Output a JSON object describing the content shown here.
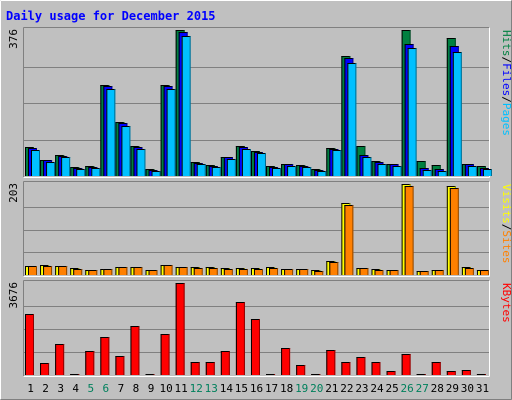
{
  "chart_data": {
    "type": "bar",
    "title": "Daily usage for December 2015",
    "days": [
      "1",
      "2",
      "3",
      "4",
      "5",
      "6",
      "7",
      "8",
      "9",
      "10",
      "11",
      "12",
      "13",
      "14",
      "15",
      "16",
      "17",
      "18",
      "19",
      "20",
      "21",
      "22",
      "23",
      "24",
      "25",
      "26",
      "27",
      "28",
      "29",
      "30",
      "31"
    ],
    "weekend_days": [
      "5",
      "6",
      "12",
      "13",
      "19",
      "20",
      "26",
      "27"
    ],
    "colors": {
      "hits": "#008040",
      "files": "#0000ff",
      "pages": "#00c0ff",
      "visits": "#ffff00",
      "sites": "#ff8000",
      "kbytes": "#ff0000",
      "title": "#0000ff",
      "weekend_label": "#00805c",
      "weekday_label": "#000000"
    },
    "panels": [
      {
        "id": "usage",
        "max_label": "376",
        "ylim": [
          0,
          376
        ],
        "series": [
          {
            "name": "Hits",
            "values": [
              75,
              42,
              55,
              22,
              25,
              235,
              140,
              78,
              18,
              235,
              375,
              35,
              28,
              50,
              78,
              65,
              25,
              32,
              28,
              18,
              72,
              310,
              78,
              38,
              32,
              376,
              38,
              28,
              355,
              32,
              25
            ]
          },
          {
            "name": "Files",
            "values": [
              72,
              40,
              52,
              20,
              23,
              232,
              137,
              75,
              16,
              232,
              372,
              33,
              26,
              48,
              75,
              62,
              23,
              30,
              26,
              16,
              70,
              305,
              55,
              35,
              30,
              340,
              20,
              18,
              335,
              30,
              20
            ]
          },
          {
            "name": "Pages",
            "values": [
              68,
              36,
              48,
              18,
              20,
              225,
              130,
              70,
              14,
              225,
              360,
              30,
              24,
              44,
              70,
              58,
              20,
              27,
              23,
              14,
              66,
              290,
              50,
              32,
              27,
              330,
              16,
              14,
              320,
              27,
              17
            ]
          }
        ],
        "legend": [
          "Pages",
          "Files",
          "Hits"
        ]
      },
      {
        "id": "visits",
        "max_label": "203",
        "ylim": [
          0,
          203
        ],
        "series": [
          {
            "name": "Visits",
            "values": [
              20,
              22,
              21,
              15,
              12,
              14,
              18,
              18,
              12,
              23,
              18,
              17,
              17,
              15,
              15,
              15,
              18,
              14,
              14,
              11,
              32,
              160,
              16,
              13,
              12,
              203,
              10,
              12,
              198,
              18,
              12
            ]
          },
          {
            "name": "Sites",
            "values": [
              19,
              21,
              20,
              14,
              11,
              13,
              17,
              17,
              11,
              22,
              17,
              16,
              16,
              14,
              14,
              14,
              16,
              13,
              13,
              10,
              30,
              157,
              15,
              12,
              11,
              198,
              9,
              11,
              193,
              16,
              11
            ]
          }
        ],
        "legend": [
          "Sites",
          "Visits"
        ]
      },
      {
        "id": "kbytes",
        "max_label": "3676",
        "ylim": [
          0,
          3676
        ],
        "series": [
          {
            "name": "KBytes",
            "values": [
              2450,
              460,
              1240,
              0,
              960,
              1500,
              740,
              1960,
              0,
              1620,
              3676,
              520,
              520,
              960,
              2900,
              2220,
              0,
              1080,
              380,
              0,
              1000,
              520,
              700,
              500,
              140,
              830,
              0,
              510,
              140,
              200,
              0
            ]
          }
        ],
        "legend": [
          "KBytes"
        ]
      }
    ]
  }
}
